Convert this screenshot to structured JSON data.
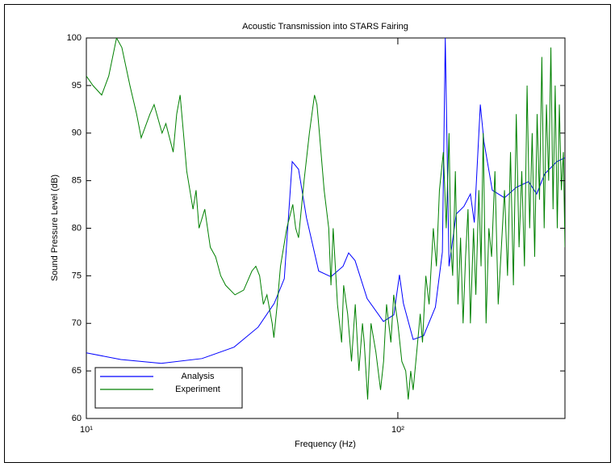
{
  "chart_data": {
    "type": "line",
    "title": "Acoustic Transmission into STARS Fairing",
    "x_label": "Frequency (Hz)",
    "y_label": "Sound Pressure Level (dB)",
    "x_scale": "log",
    "xlim": [
      10,
      344
    ],
    "xticks": [
      {
        "value": 10,
        "label": "10¹"
      },
      {
        "value": 100,
        "label": "10²"
      }
    ],
    "ylim": [
      60,
      100
    ],
    "yticks": [
      60,
      65,
      70,
      75,
      80,
      85,
      90,
      95,
      100
    ],
    "grid": false,
    "legend": "lower left",
    "series": [
      {
        "name": "Analysis",
        "color": "#0000ff",
        "x": [
          10,
          12.9,
          17.4,
          23.5,
          29.8,
          35.6,
          40.1,
          43.2,
          45.8,
          48,
          50.9,
          55.7,
          61,
          66.7,
          69.5,
          72.9,
          79.7,
          89.9,
          97.1,
          101.2,
          104.2,
          112,
          121,
          132,
          139,
          142,
          146,
          154,
          163,
          171,
          176,
          184,
          189,
          201,
          220,
          240,
          263,
          279,
          296,
          324,
          344
        ],
        "values": [
          66.9,
          66.2,
          65.8,
          66.3,
          67.5,
          69.6,
          72.1,
          74.7,
          87.0,
          86.2,
          81.1,
          75.5,
          74.9,
          76.0,
          77.4,
          76.6,
          72.6,
          70.2,
          70.9,
          75.1,
          72.1,
          68.3,
          68.7,
          71.7,
          77.5,
          100,
          76.0,
          81.5,
          82.3,
          83.6,
          80.6,
          93.0,
          89.1,
          84.0,
          83.2,
          84.3,
          84.9,
          83.6,
          85.7,
          87.0,
          87.4
        ]
      },
      {
        "name": "Experiment",
        "color": "#008000",
        "x": [
          10,
          10.5,
          11.2,
          11.8,
          12.5,
          13,
          13.8,
          14.5,
          15,
          16,
          16.5,
          17.5,
          18,
          19,
          19.5,
          20,
          20.5,
          21,
          22,
          22.5,
          23,
          24,
          25,
          26,
          27,
          28,
          30,
          32,
          34,
          35,
          36,
          37,
          38,
          39.5,
          40,
          41,
          42,
          44,
          46,
          47,
          48,
          50,
          52,
          54,
          55,
          56,
          58,
          60,
          61,
          62,
          64,
          66,
          67,
          69,
          71,
          73,
          75,
          77,
          78,
          80,
          82,
          85,
          88,
          90,
          92,
          95,
          97,
          100,
          103,
          106,
          108,
          110,
          112,
          115,
          118,
          120,
          123,
          126,
          130,
          133,
          136,
          140,
          143,
          146,
          148,
          150,
          153,
          156,
          159,
          162,
          165,
          168,
          171,
          175,
          178,
          182,
          185,
          188,
          192,
          196,
          200,
          205,
          210,
          215,
          220,
          225,
          230,
          235,
          240,
          245,
          250,
          255,
          260,
          265,
          270,
          275,
          280,
          285,
          290,
          295,
          300,
          305,
          310,
          315,
          320,
          325,
          330,
          335,
          340,
          344
        ],
        "values": [
          96,
          95,
          94,
          96,
          100,
          99,
          95,
          92,
          89.5,
          92,
          93,
          90,
          91,
          88,
          92,
          94,
          90,
          86,
          82,
          84,
          80,
          82,
          78,
          77,
          75,
          74,
          73,
          73.5,
          75.5,
          76,
          75,
          72,
          73,
          70,
          68.5,
          72,
          76,
          80,
          82.5,
          80,
          79,
          85,
          90,
          94,
          93,
          90,
          84,
          80,
          74,
          80,
          72,
          68,
          74,
          71,
          66,
          72,
          65,
          70,
          68,
          62,
          70,
          67,
          63,
          66,
          72,
          68,
          73,
          70,
          66,
          65,
          62,
          65,
          63,
          67,
          71,
          68,
          75,
          72,
          80,
          76,
          84,
          88,
          80,
          90,
          78,
          75,
          86,
          72,
          79,
          70,
          77,
          82,
          70,
          80,
          73,
          84,
          76,
          90,
          70,
          80,
          77,
          86,
          72,
          78,
          84,
          75,
          88,
          74,
          92,
          78,
          86,
          76,
          95,
          80,
          90,
          77,
          92,
          83,
          98,
          80,
          93,
          85,
          99,
          82,
          95,
          80,
          93,
          84,
          88,
          78
        ]
      }
    ]
  }
}
